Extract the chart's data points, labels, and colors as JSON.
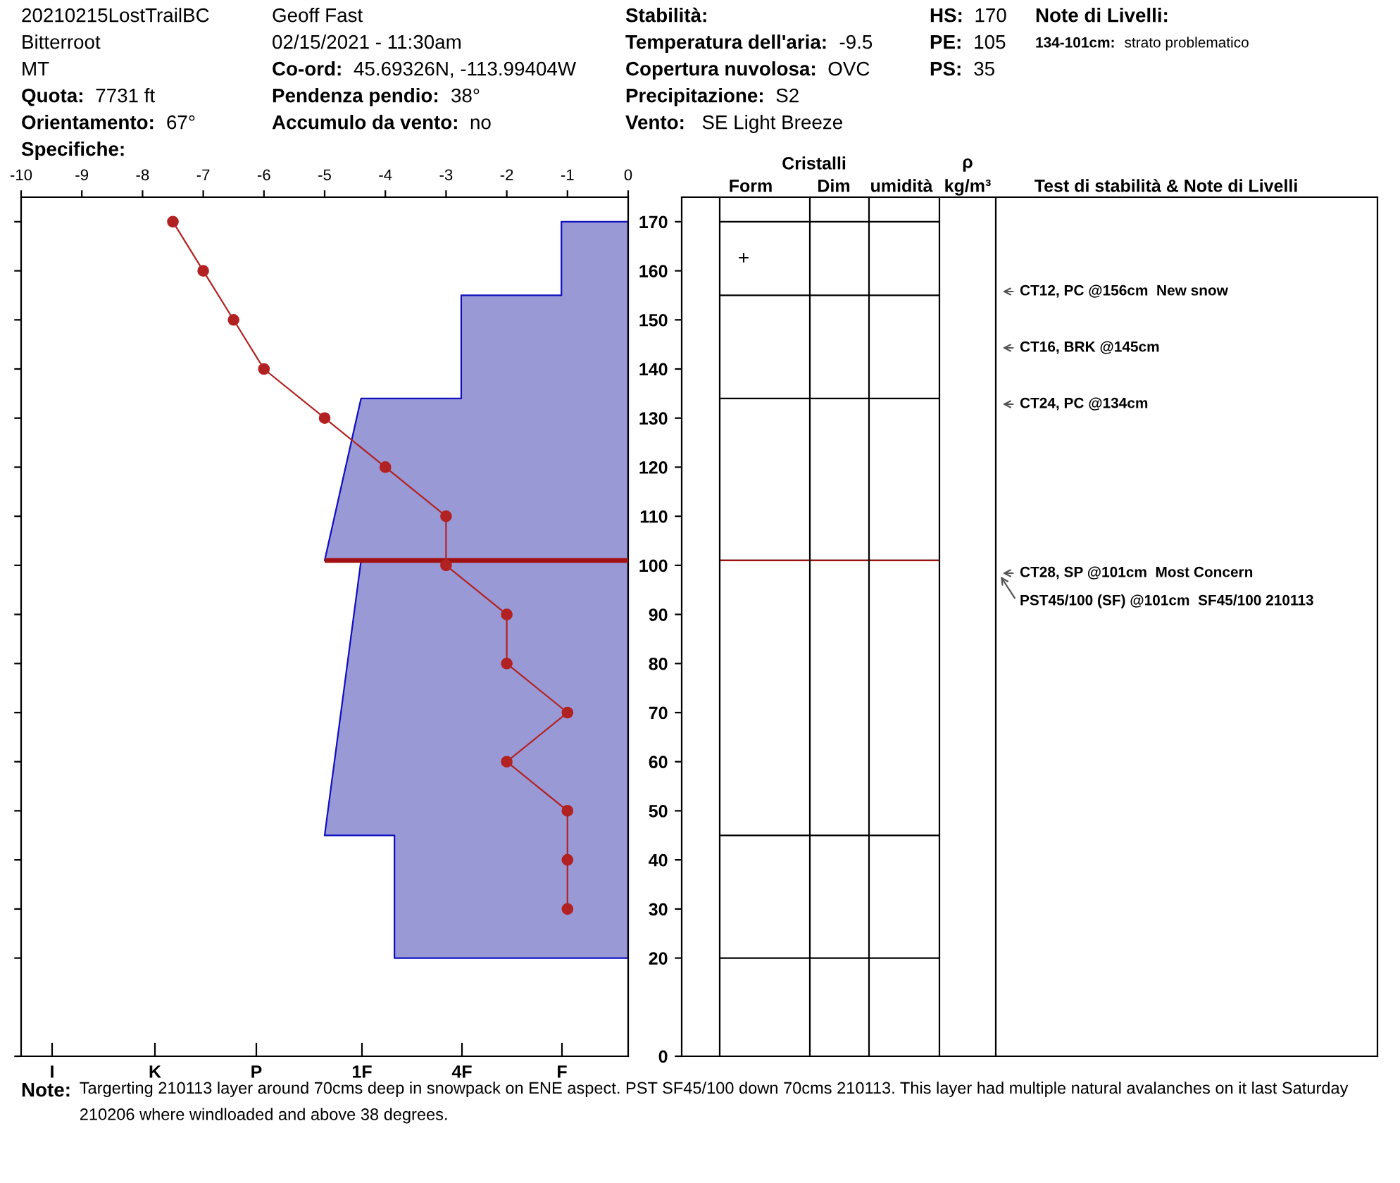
{
  "chart_data": {
    "type": "line",
    "orientation": "horizontal",
    "xlim": [
      -10,
      0
    ],
    "xticks": [
      -10,
      -9,
      -8,
      -7,
      -6,
      -5,
      -4,
      -3,
      -2,
      -1,
      0
    ],
    "ylim": [
      0,
      175
    ],
    "yticks": [
      0,
      20,
      30,
      40,
      50,
      60,
      70,
      80,
      90,
      100,
      110,
      120,
      130,
      140,
      150,
      160,
      170
    ],
    "grid": false,
    "legend": false,
    "series": [
      {
        "type": "area",
        "color": "#9999d6",
        "x": [
          170,
          155,
          155,
          134,
          134,
          101,
          101,
          45,
          45,
          20
        ],
        "values": [
          -1.1,
          -1.1,
          -2.75,
          -2.75,
          -4.4,
          -5.0,
          -4.4,
          -5.0,
          -3.85,
          -3.85
        ]
      },
      {
        "type": "line",
        "color": "#b22222",
        "marker": "circle",
        "line_style": "solid",
        "x": [
          170,
          160,
          150,
          140,
          130,
          120,
          110,
          100,
          90,
          80,
          70,
          60,
          50,
          40,
          30
        ],
        "values": [
          -7.5,
          -7.0,
          -6.5,
          -6.0,
          -5.0,
          -4.0,
          -3.0,
          -3.0,
          -2.0,
          -2.0,
          -1.0,
          -2.0,
          -1.0,
          -1.0,
          -1.0
        ]
      }
    ],
    "ref_lines": [
      {
        "axis": "y",
        "value": 101,
        "color": "#a01010"
      }
    ],
    "annotations": [
      "20210215LostTrailBC",
      "Bitterroot",
      "MT",
      "Quota: 7731 ft",
      "Orientamento: 67°",
      "Specifiche:",
      "Geoff Fast",
      "02/15/2021 - 11:30am",
      "Co-ord: 45.69326N, -113.99404W",
      "Pendenza pendio: 38°",
      "Accumulo da vento: no",
      "Stabilità:",
      "Temperatura dell'aria: -9.5",
      "Copertura nuvolosa: OVC",
      "Precipitazione: S2",
      "Vento:  SE Light Breeze",
      "HS: 170",
      "PE: 105",
      "PS: 35",
      "Note di Livelli:",
      "134-101cm: strato problematico",
      "Note: Targerting 210113 layer around 70cms deep in snowpack on ENE aspect. PST SF45/100 down 70cms 210113. This layer had multiple natural avalanches on it last Saturday 210206 where windloaded and above 38 degrees.",
      "Cristalli",
      "Form",
      "Dim",
      "umidità",
      "ρ",
      "kg/m³",
      "Test di stabilità & Note di Livelli",
      "+",
      "CT12, PC @156cm  New snow",
      "CT16, BRK @145cm",
      "CT24, PC @134cm",
      "CT28, SP @101cm  Most Concern",
      "PST45/100 (SF) @101cm  SF45/100 210113",
      "I",
      "K",
      "P",
      "1F",
      "4F",
      "F"
    ]
  }
}
